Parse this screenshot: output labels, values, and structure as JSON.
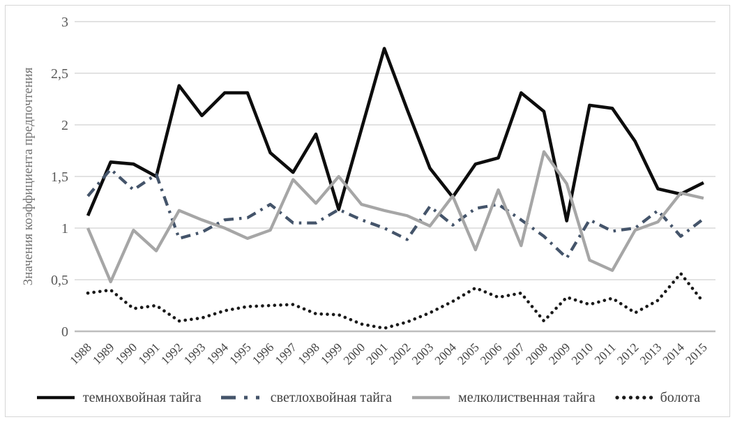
{
  "chart_data": {
    "type": "line",
    "title": "",
    "xlabel": "",
    "ylabel": "Значения коэффициента предпочтения",
    "ylim": [
      0,
      3
    ],
    "ytick_step": 0.5,
    "y_tick_labels": [
      "0",
      "0,5",
      "1",
      "1,5",
      "2",
      "2,5",
      "3"
    ],
    "grid": "horizontal",
    "legend_position": "bottom",
    "categories": [
      "1988",
      "1989",
      "1990",
      "1991",
      "1992",
      "1993",
      "1994",
      "1995",
      "1996",
      "1997",
      "1998",
      "1999",
      "2000",
      "2001",
      "2002",
      "2003",
      "2004",
      "2005",
      "2006",
      "2007",
      "2008",
      "2009",
      "2010",
      "2011",
      "2012",
      "2013",
      "2014",
      "2015"
    ],
    "series": [
      {
        "name": "темнохвойная тайга",
        "style": "solid",
        "color": "#0d0d0d",
        "values": [
          1.12,
          1.64,
          1.62,
          1.5,
          2.38,
          2.09,
          2.31,
          2.31,
          1.73,
          1.54,
          1.91,
          1.18,
          1.96,
          2.74,
          2.15,
          1.58,
          1.3,
          1.62,
          1.68,
          2.31,
          2.13,
          1.07,
          2.19,
          2.16,
          1.84,
          1.38,
          1.33,
          1.44
        ]
      },
      {
        "name": "светлохвойная тайга",
        "style": "dash-dot",
        "color": "#44546a",
        "values": [
          1.31,
          1.57,
          1.37,
          1.52,
          0.9,
          0.96,
          1.08,
          1.1,
          1.23,
          1.05,
          1.05,
          1.18,
          1.08,
          1.0,
          0.89,
          1.21,
          1.03,
          1.19,
          1.23,
          1.08,
          0.92,
          0.71,
          1.08,
          0.97,
          1.0,
          1.17,
          0.92,
          1.09
        ]
      },
      {
        "name": "мелколиственная тайга",
        "style": "solid",
        "color": "#a6a6a6",
        "values": [
          1.0,
          0.48,
          0.98,
          0.78,
          1.17,
          1.08,
          1.0,
          0.9,
          0.98,
          1.47,
          1.24,
          1.5,
          1.23,
          1.17,
          1.12,
          1.02,
          1.31,
          0.79,
          1.37,
          0.83,
          1.74,
          1.43,
          0.69,
          0.59,
          0.98,
          1.06,
          1.34,
          1.29
        ]
      },
      {
        "name": "болота",
        "style": "dotted",
        "color": "#1a1a1a",
        "values": [
          0.37,
          0.4,
          0.22,
          0.25,
          0.1,
          0.13,
          0.2,
          0.24,
          0.25,
          0.26,
          0.17,
          0.16,
          0.07,
          0.03,
          0.09,
          0.18,
          0.29,
          0.42,
          0.33,
          0.37,
          0.1,
          0.33,
          0.26,
          0.32,
          0.18,
          0.3,
          0.56,
          0.28
        ]
      }
    ],
    "colors": {
      "gridline": "#d9d9d9",
      "axis_line": "#bdbdbd",
      "tick_text": "#595959",
      "x_tick_text": "#454545",
      "axis_title_text": "#737373"
    }
  }
}
